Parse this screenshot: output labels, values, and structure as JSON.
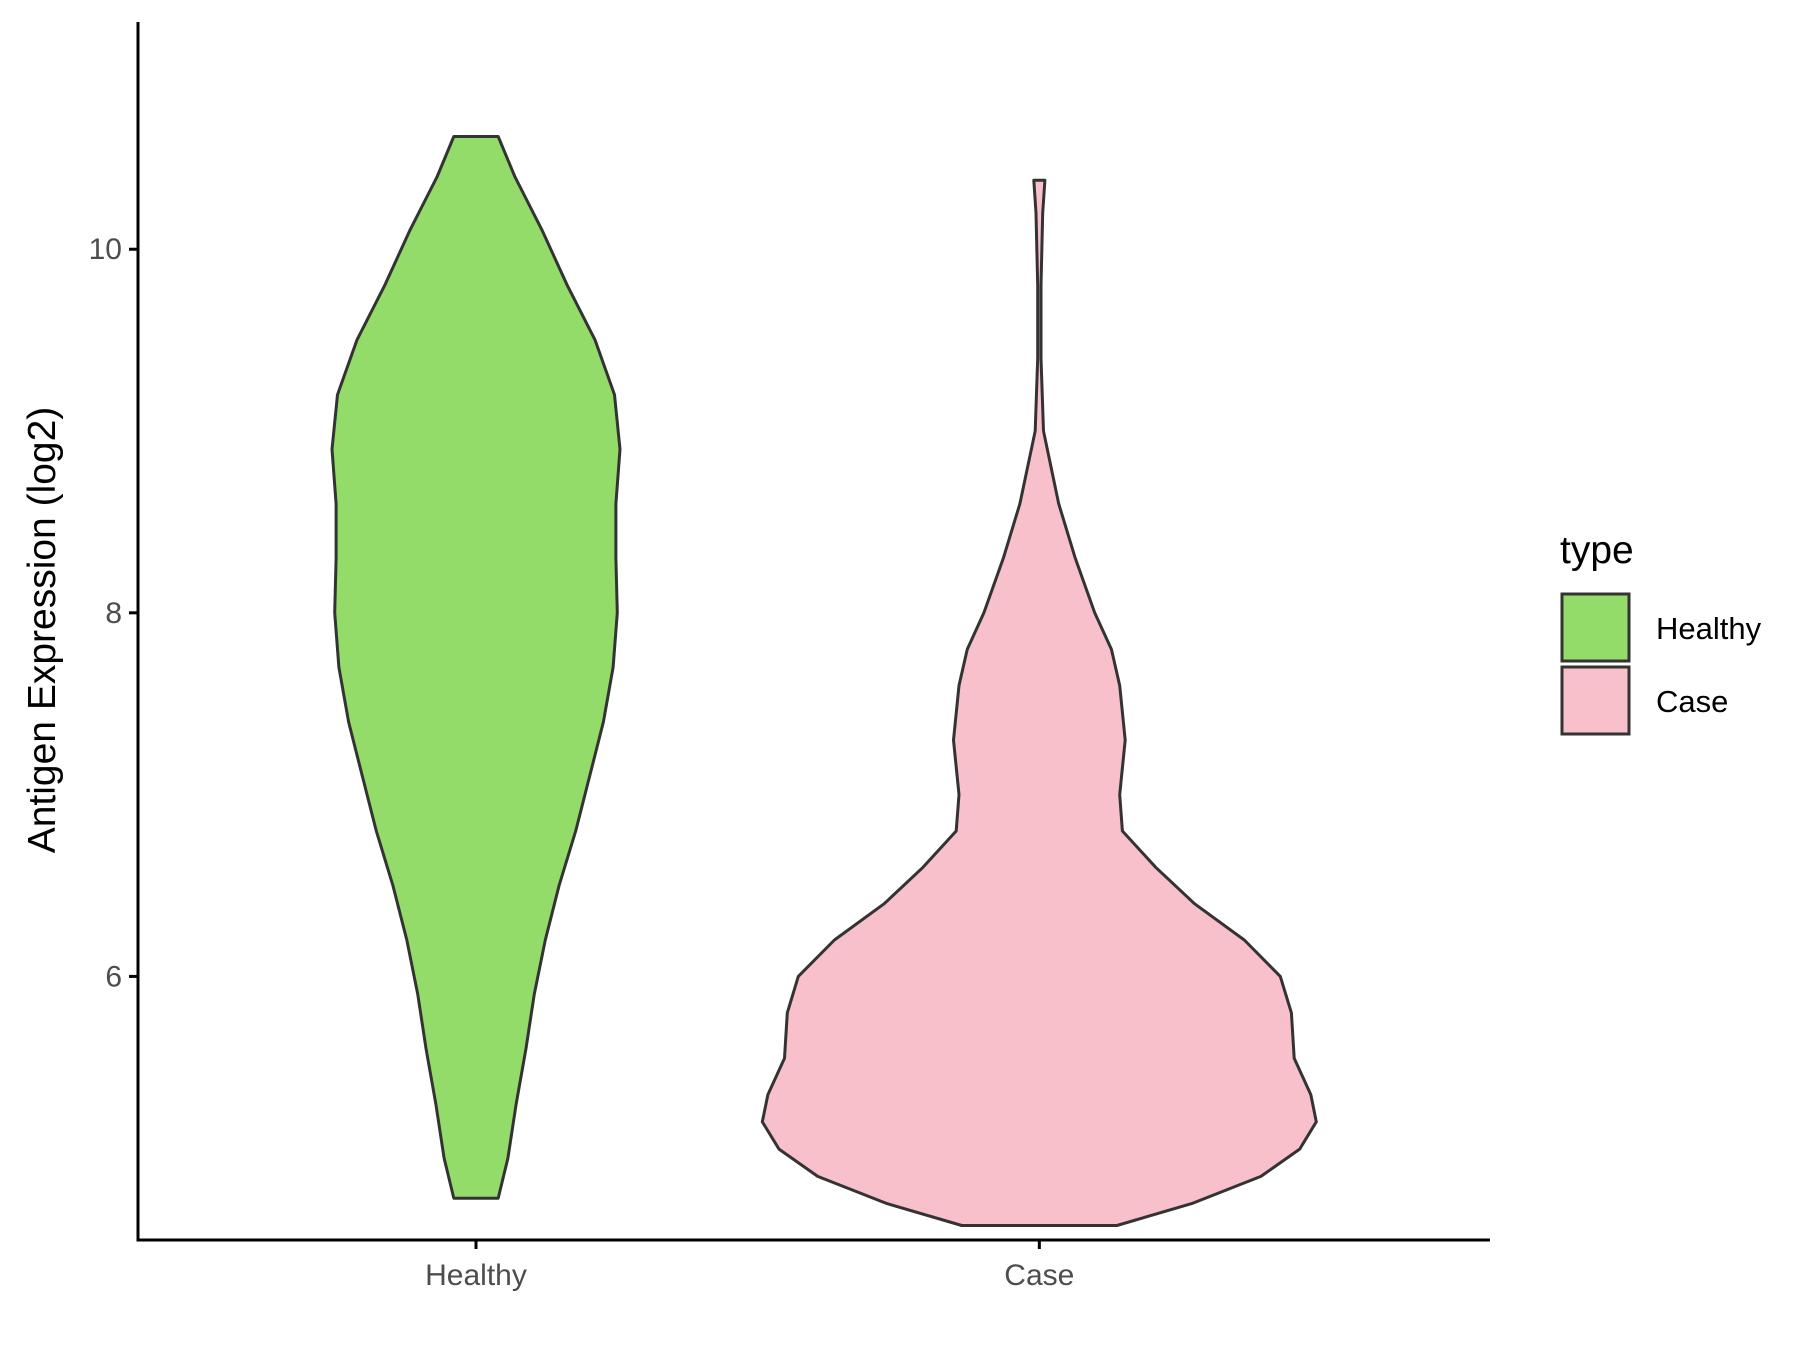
{
  "chart_data": {
    "type": "violin",
    "title": "",
    "xlabel": "",
    "ylabel": "Antigen Expression (log2)",
    "categories": [
      "Healthy",
      "Case"
    ],
    "ylim": [
      4.55,
      11.25
    ],
    "yticks": [
      6,
      8,
      10
    ],
    "legend": {
      "title": "type",
      "position": "right",
      "entries": [
        {
          "label": "Healthy",
          "color": "#93DC6A"
        },
        {
          "label": "Case",
          "color": "#F7C0CB"
        }
      ]
    },
    "grid": false,
    "series": [
      {
        "category": "Healthy",
        "color": "#93DC6A",
        "profile": [
          [
            4.78,
            0.08
          ],
          [
            5.0,
            0.115
          ],
          [
            5.3,
            0.145
          ],
          [
            5.6,
            0.18
          ],
          [
            5.9,
            0.21
          ],
          [
            6.2,
            0.25
          ],
          [
            6.5,
            0.3
          ],
          [
            6.8,
            0.36
          ],
          [
            7.1,
            0.41
          ],
          [
            7.4,
            0.46
          ],
          [
            7.7,
            0.495
          ],
          [
            8.0,
            0.51
          ],
          [
            8.3,
            0.505
          ],
          [
            8.6,
            0.505
          ],
          [
            8.9,
            0.52
          ],
          [
            9.2,
            0.5
          ],
          [
            9.5,
            0.43
          ],
          [
            9.8,
            0.33
          ],
          [
            10.1,
            0.24
          ],
          [
            10.4,
            0.14
          ],
          [
            10.62,
            0.08
          ]
        ]
      },
      {
        "category": "Case",
        "color": "#F7C0CB",
        "profile": [
          [
            4.63,
            0.28
          ],
          [
            4.75,
            0.55
          ],
          [
            4.9,
            0.8
          ],
          [
            5.05,
            0.94
          ],
          [
            5.2,
            1.0
          ],
          [
            5.35,
            0.98
          ],
          [
            5.55,
            0.92
          ],
          [
            5.8,
            0.91
          ],
          [
            6.0,
            0.87
          ],
          [
            6.2,
            0.74
          ],
          [
            6.4,
            0.56
          ],
          [
            6.6,
            0.42
          ],
          [
            6.8,
            0.3
          ],
          [
            7.0,
            0.29
          ],
          [
            7.3,
            0.31
          ],
          [
            7.6,
            0.29
          ],
          [
            7.8,
            0.26
          ],
          [
            8.0,
            0.2
          ],
          [
            8.3,
            0.13
          ],
          [
            8.6,
            0.07
          ],
          [
            9.0,
            0.015
          ],
          [
            9.4,
            0.006
          ],
          [
            9.8,
            0.006
          ],
          [
            10.2,
            0.012
          ],
          [
            10.38,
            0.02
          ]
        ]
      }
    ]
  }
}
